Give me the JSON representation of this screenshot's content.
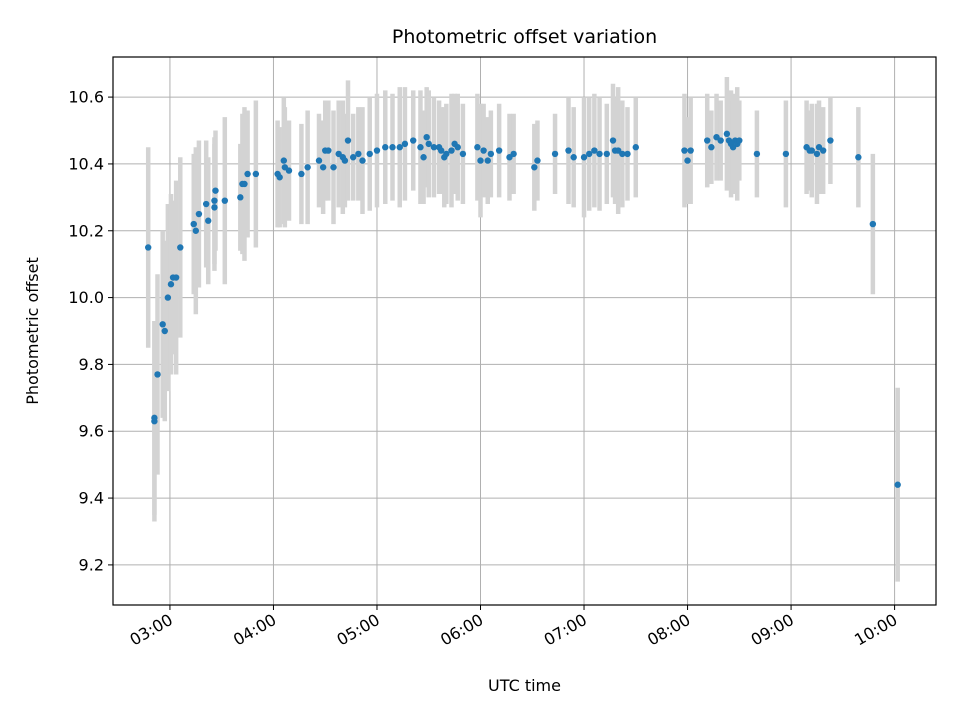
{
  "chart_data": {
    "type": "scatter",
    "title": "Photometric offset variation",
    "xlabel": "UTC time",
    "ylabel": "Photometric offset",
    "x_unit": "hours UTC",
    "xlim": [
      2.45,
      10.4
    ],
    "ylim": [
      9.08,
      10.72
    ],
    "xticks": [
      {
        "value": 3,
        "label": "03:00"
      },
      {
        "value": 4,
        "label": "04:00"
      },
      {
        "value": 5,
        "label": "05:00"
      },
      {
        "value": 6,
        "label": "06:00"
      },
      {
        "value": 7,
        "label": "07:00"
      },
      {
        "value": 8,
        "label": "08:00"
      },
      {
        "value": 9,
        "label": "09:00"
      },
      {
        "value": 10,
        "label": "10:00"
      }
    ],
    "yticks": [
      9.2,
      9.4,
      9.6,
      9.8,
      10.0,
      10.2,
      10.4,
      10.6
    ],
    "grid": true,
    "colors": {
      "point": "#1f77b4",
      "errorbar": "#d3d3d3",
      "grid": "#b0b0b0"
    },
    "series": [
      {
        "x": [
          2.79,
          2.85,
          2.85,
          2.88,
          2.93,
          2.95,
          2.98,
          3.01,
          3.03,
          3.06,
          3.1,
          3.23,
          3.25,
          3.28,
          3.35,
          3.37,
          3.43,
          3.43,
          3.44,
          3.53,
          3.68,
          3.7,
          3.72,
          3.75,
          3.83,
          4.04,
          4.06,
          4.1,
          4.11,
          4.15,
          4.27,
          4.33,
          4.44,
          4.48,
          4.5,
          4.53,
          4.58,
          4.63,
          4.67,
          4.69,
          4.72,
          4.77,
          4.82,
          4.86,
          4.93,
          5.0,
          5.08,
          5.15,
          5.22,
          5.27,
          5.35,
          5.42,
          5.45,
          5.48,
          5.5,
          5.55,
          5.6,
          5.62,
          5.65,
          5.67,
          5.72,
          5.75,
          5.78,
          5.83,
          5.97,
          6.0,
          6.03,
          6.07,
          6.1,
          6.18,
          6.28,
          6.32,
          6.52,
          6.55,
          6.72,
          6.85,
          6.9,
          7.0,
          7.05,
          7.1,
          7.15,
          7.22,
          7.28,
          7.3,
          7.33,
          7.37,
          7.42,
          7.5,
          7.97,
          8.0,
          8.03,
          8.19,
          8.23,
          8.28,
          8.32,
          8.38,
          8.4,
          8.42,
          8.44,
          8.46,
          8.48,
          8.5,
          8.67,
          8.95,
          9.15,
          9.18,
          9.2,
          9.25,
          9.27,
          9.31,
          9.38,
          9.65,
          9.79,
          10.03
        ],
        "y": [
          10.15,
          9.63,
          9.64,
          9.77,
          9.92,
          9.9,
          10.0,
          10.04,
          10.06,
          10.06,
          10.15,
          10.22,
          10.2,
          10.25,
          10.28,
          10.23,
          10.27,
          10.29,
          10.32,
          10.29,
          10.3,
          10.34,
          10.34,
          10.37,
          10.37,
          10.37,
          10.36,
          10.41,
          10.39,
          10.38,
          10.37,
          10.39,
          10.41,
          10.39,
          10.44,
          10.44,
          10.39,
          10.43,
          10.42,
          10.41,
          10.47,
          10.42,
          10.43,
          10.41,
          10.43,
          10.44,
          10.45,
          10.45,
          10.45,
          10.46,
          10.47,
          10.45,
          10.42,
          10.48,
          10.46,
          10.45,
          10.45,
          10.44,
          10.42,
          10.43,
          10.44,
          10.46,
          10.45,
          10.43,
          10.45,
          10.41,
          10.44,
          10.41,
          10.43,
          10.44,
          10.42,
          10.43,
          10.39,
          10.41,
          10.43,
          10.44,
          10.42,
          10.42,
          10.43,
          10.44,
          10.43,
          10.43,
          10.47,
          10.44,
          10.44,
          10.43,
          10.43,
          10.45,
          10.44,
          10.41,
          10.44,
          10.47,
          10.45,
          10.48,
          10.47,
          10.49,
          10.47,
          10.46,
          10.45,
          10.47,
          10.46,
          10.47,
          10.43,
          10.43,
          10.45,
          10.44,
          10.44,
          10.43,
          10.45,
          10.44,
          10.47,
          10.42,
          10.22,
          9.44
        ],
        "yerr": [
          0.3,
          0.3,
          0.29,
          0.3,
          0.28,
          0.27,
          0.28,
          0.27,
          0.23,
          0.29,
          0.27,
          0.21,
          0.25,
          0.22,
          0.19,
          0.19,
          0.19,
          0.19,
          0.18,
          0.25,
          0.16,
          0.21,
          0.23,
          0.19,
          0.22,
          0.16,
          0.15,
          0.19,
          0.18,
          0.15,
          0.15,
          0.17,
          0.14,
          0.14,
          0.15,
          0.15,
          0.17,
          0.16,
          0.17,
          0.14,
          0.18,
          0.13,
          0.14,
          0.16,
          0.17,
          0.17,
          0.17,
          0.16,
          0.18,
          0.17,
          0.15,
          0.17,
          0.14,
          0.15,
          0.16,
          0.15,
          0.14,
          0.13,
          0.15,
          0.15,
          0.17,
          0.15,
          0.16,
          0.15,
          0.16,
          0.17,
          0.14,
          0.13,
          0.13,
          0.14,
          0.13,
          0.12,
          0.13,
          0.12,
          0.12,
          0.16,
          0.15,
          0.18,
          0.17,
          0.17,
          0.17,
          0.15,
          0.17,
          0.16,
          0.19,
          0.16,
          0.14,
          0.15,
          0.17,
          0.13,
          0.16,
          0.14,
          0.11,
          0.13,
          0.12,
          0.17,
          0.13,
          0.16,
          0.14,
          0.14,
          0.17,
          0.12,
          0.13,
          0.16,
          0.14,
          0.12,
          0.14,
          0.15,
          0.14,
          0.13,
          0.13,
          0.15,
          0.21,
          0.29
        ]
      }
    ]
  }
}
